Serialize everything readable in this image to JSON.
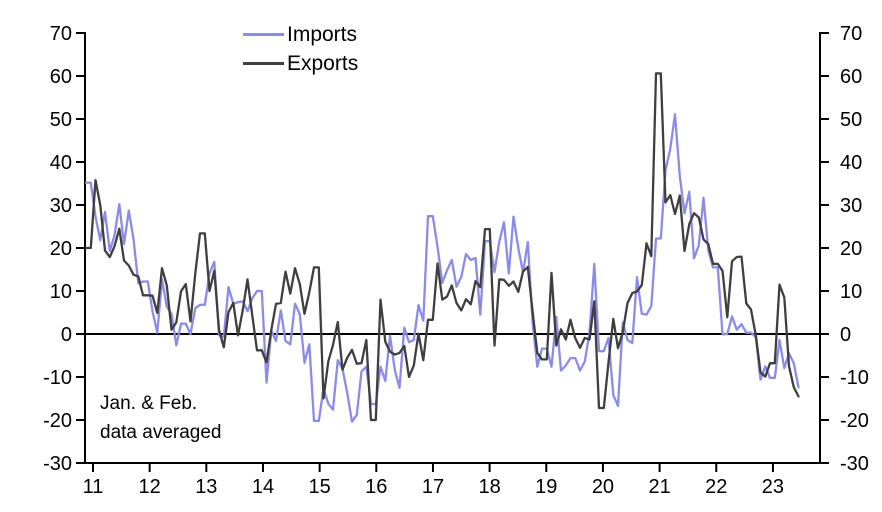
{
  "chart_data": {
    "type": "line",
    "title": "",
    "xlabel": "",
    "ylabel": "",
    "ylim": [
      -30,
      70
    ],
    "y_ticks": [
      -30,
      -20,
      -10,
      0,
      10,
      20,
      30,
      40,
      50,
      60,
      70
    ],
    "x_tick_labels": [
      "11",
      "12",
      "13",
      "14",
      "15",
      "16",
      "17",
      "18",
      "19",
      "20",
      "21",
      "22",
      "23"
    ],
    "x_range_note": "monthly data Jan 2011 - Jul 2023, Jan & Feb of each year averaged",
    "grid": "none",
    "zero_line": true,
    "legend_position": "top-inside",
    "annotation_line1": "Jan. & Feb.",
    "annotation_line2": "data averaged",
    "series": [
      {
        "name": "Imports",
        "color": "#8b8be8",
        "monthly_yoy_pct": [
          35.2,
          35.2,
          27.3,
          21.8,
          28.4,
          19.3,
          22.9,
          30.2,
          20.9,
          28.7,
          22.1,
          11.8,
          12.2,
          12.2,
          5.3,
          0.3,
          12.7,
          6.3,
          4.7,
          -2.6,
          2.4,
          2.4,
          0,
          6,
          6.8,
          6.8,
          14.1,
          16.8,
          -0.3,
          -0.7,
          10.9,
          7,
          7.4,
          7.6,
          5.3,
          8.3,
          10,
          10,
          -11.3,
          0.8,
          -1.6,
          5.5,
          -1.6,
          -2.4,
          7,
          4.6,
          -6.7,
          -2.4,
          -20.2,
          -20.2,
          -12.7,
          -16.2,
          -17.6,
          -6.1,
          -8.1,
          -13.8,
          -20.4,
          -18.8,
          -8.7,
          -7.6,
          -16.3,
          -16.3,
          -7.6,
          -10.9,
          -0.4,
          -8.4,
          -12.5,
          1.5,
          -1.9,
          -1.4,
          6.7,
          3.1,
          27.4,
          27.4,
          20.3,
          11.9,
          14.8,
          17.2,
          11,
          13.3,
          18.6,
          17.2,
          17.7,
          4.5,
          21.6,
          21.6,
          14.4,
          21.5,
          26,
          14.1,
          27.3,
          20,
          14.3,
          21.4,
          3,
          -7.6,
          -3.4,
          -3.4,
          -7.6,
          4,
          -8.5,
          -7.3,
          -5.6,
          -5.6,
          -8.5,
          -6.4,
          0.3,
          16.3,
          -4,
          -4,
          -0.9,
          -14.2,
          -16.7,
          2.7,
          -1.4,
          -2.1,
          13.2,
          4.7,
          4.5,
          6.5,
          22.2,
          22.2,
          38.1,
          43.1,
          51.1,
          36.7,
          28.1,
          33.1,
          17.6,
          20.6,
          31.7,
          19.5,
          15.5,
          15.5,
          -0.1,
          0,
          4.1,
          1,
          2.3,
          0.3,
          0.3,
          -0.7,
          -10.6,
          -7.5,
          -10.2,
          -10.2,
          -1.4,
          -7.9,
          -4.5,
          -6.8,
          -12.4
        ]
      },
      {
        "name": "Exports",
        "color": "#3f3f3f",
        "monthly_yoy_pct": [
          20,
          20,
          35.8,
          29.9,
          19.4,
          17.9,
          20.4,
          24.5,
          17.1,
          15.9,
          13.8,
          13.4,
          9,
          9,
          8.9,
          4.9,
          15.3,
          11.3,
          1,
          2.7,
          9.9,
          11.6,
          2.9,
          14.1,
          23.4,
          23.4,
          10,
          14.7,
          1,
          -3.1,
          5.1,
          7.2,
          -0.3,
          5.6,
          12.7,
          4.3,
          -3.8,
          -3.8,
          -6.6,
          0.9,
          7,
          7.2,
          14.5,
          9.4,
          15.3,
          11.6,
          4.7,
          9.7,
          15.5,
          15.5,
          -15,
          -6.4,
          -2.5,
          2.8,
          -8.3,
          -5.5,
          -3.7,
          -6.9,
          -6.8,
          -1.4,
          -20,
          -20,
          8,
          -1.8,
          -4.1,
          -4.8,
          -4.4,
          -2.8,
          -10,
          -7.3,
          0.1,
          -6.1,
          3.3,
          3.3,
          16.4,
          8,
          8.7,
          11.3,
          7.2,
          5.5,
          8.1,
          6.9,
          12.3,
          10.9,
          24.4,
          24.4,
          -2.7,
          12.7,
          12.6,
          11.2,
          12.2,
          9.8,
          14.5,
          15.6,
          5.4,
          -4.4,
          -5.9,
          -5.9,
          14.2,
          -2.7,
          1.1,
          -1.3,
          3.3,
          -1,
          -3.2,
          -0.9,
          -1.3,
          7.6,
          -17.2,
          -17.2,
          -6.6,
          3.5,
          -3.3,
          0.5,
          7.2,
          9.5,
          9.9,
          11.4,
          21.1,
          18.1,
          60.6,
          60.6,
          30.6,
          32.3,
          27.9,
          32.2,
          19.3,
          25.6,
          28.1,
          27.1,
          22,
          20.9,
          16.3,
          16.3,
          14.7,
          3.9,
          16.9,
          17.9,
          18,
          7.1,
          5.7,
          -0.3,
          -8.9,
          -9.9,
          -6.8,
          -6.8,
          11.5,
          8.5,
          -7.5,
          -12.4,
          -14.5
        ]
      }
    ]
  },
  "legend": {
    "imports_label": "Imports",
    "exports_label": "Exports"
  },
  "colors": {
    "imports": "#8b8be8",
    "exports": "#3f3f3f",
    "axis": "#000000",
    "background": "#ffffff"
  }
}
